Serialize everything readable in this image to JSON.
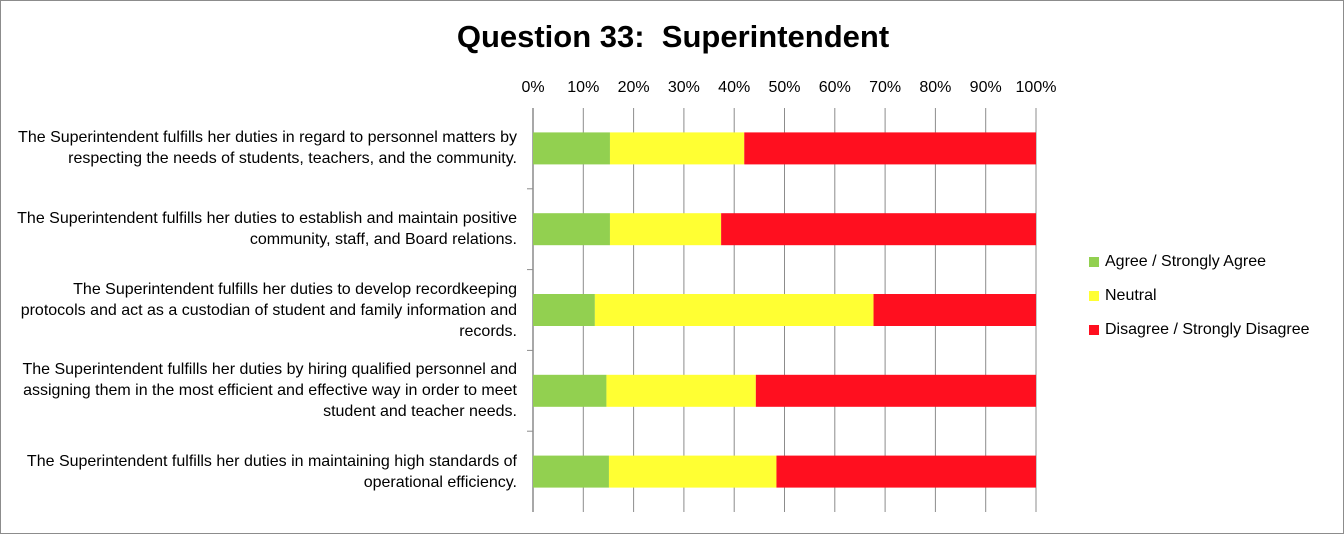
{
  "chart_data": {
    "type": "bar",
    "orientation": "horizontal",
    "stacked": "percent",
    "title": "Question 33:  Superintendent",
    "categories": [
      "The Superintendent fulfills her duties in regard to personnel matters by respecting the needs of students, teachers, and the community.",
      "The Superintendent fulfills her duties to establish and maintain positive community, staff, and Board relations.",
      "The Superintendent fulfills her duties to develop recordkeeping protocols and act as a custodian of student and family information and records.",
      "The Superintendent fulfills her duties by hiring qualified personnel and assigning them in the most efficient and effective way in order to meet student and teacher needs.",
      "The Superintendent fulfills her duties in maintaining high standards of operational efficiency."
    ],
    "series": [
      {
        "name": "Agree / Strongly Agree",
        "color": "#92d050",
        "values": [
          15.3,
          15.3,
          12.3,
          14.6,
          15.1
        ]
      },
      {
        "name": "Neutral",
        "color": "#ffff33",
        "values": [
          26.7,
          22.1,
          55.4,
          29.7,
          33.3
        ]
      },
      {
        "name": "Disagree / Strongly Disagree",
        "color": "#ff0f1f",
        "values": [
          58.0,
          62.6,
          32.3,
          55.7,
          51.6
        ]
      }
    ],
    "xlim": [
      0,
      100
    ],
    "x_ticks": [
      "0%",
      "10%",
      "20%",
      "30%",
      "40%",
      "50%",
      "60%",
      "70%",
      "80%",
      "90%",
      "100%"
    ],
    "x_axis_position": "top",
    "grid": true,
    "legend": "right"
  }
}
